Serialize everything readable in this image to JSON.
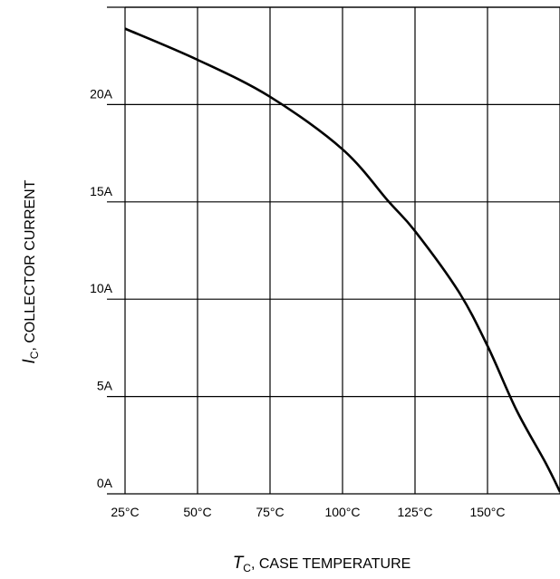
{
  "chart_data": {
    "type": "line",
    "xlabel": {
      "symbol": "T",
      "subscript": "C",
      "text": ", CASE TEMPERATURE"
    },
    "ylabel": {
      "symbol": "I",
      "subscript": "C",
      "text": ", COLLECTOR CURRENT"
    },
    "x_ticks": [
      {
        "value": 25,
        "label": "25°C"
      },
      {
        "value": 50,
        "label": "50°C"
      },
      {
        "value": 75,
        "label": "75°C"
      },
      {
        "value": 100,
        "label": "100°C"
      },
      {
        "value": 125,
        "label": "125°C"
      },
      {
        "value": 150,
        "label": "150°C"
      }
    ],
    "y_ticks": [
      {
        "value": 0,
        "label": "0A"
      },
      {
        "value": 5,
        "label": "5A"
      },
      {
        "value": 10,
        "label": "10A"
      },
      {
        "value": 15,
        "label": "15A"
      },
      {
        "value": 20,
        "label": "20A"
      }
    ],
    "xlim": [
      25,
      175
    ],
    "ylim": [
      0,
      25
    ],
    "grid": true,
    "series": [
      {
        "x": [
          25,
          50,
          75,
          100,
          116,
          125,
          140,
          150,
          160,
          170,
          175
        ],
        "y": [
          23.9,
          22.3,
          20.4,
          17.7,
          15.0,
          13.5,
          10.4,
          7.6,
          4.3,
          1.6,
          0.1
        ],
        "color": "#000000"
      }
    ]
  }
}
